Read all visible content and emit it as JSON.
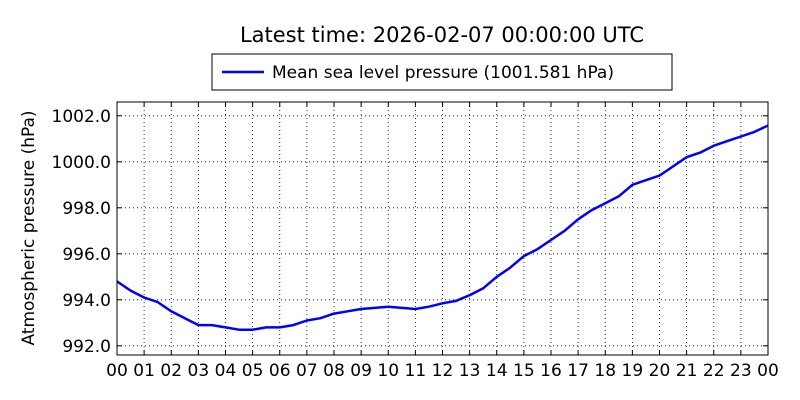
{
  "chart_data": {
    "type": "line",
    "title": "Latest time: 2026-02-07 00:00:00 UTC",
    "xlabel": "",
    "ylabel": "Atmospheric pressure (hPa)",
    "legend": {
      "position": "top-center",
      "entries": [
        "Mean sea level pressure (1001.581 hPa)"
      ]
    },
    "grid": true,
    "xlim": [
      0,
      24
    ],
    "ylim": [
      991.6,
      1002.6
    ],
    "x_ticks": [
      0,
      1,
      2,
      3,
      4,
      5,
      6,
      7,
      8,
      9,
      10,
      11,
      12,
      13,
      14,
      15,
      16,
      17,
      18,
      19,
      20,
      21,
      22,
      23,
      24
    ],
    "x_tick_labels": [
      "00",
      "01",
      "02",
      "03",
      "04",
      "05",
      "06",
      "07",
      "08",
      "09",
      "10",
      "11",
      "12",
      "13",
      "14",
      "15",
      "16",
      "17",
      "18",
      "19",
      "20",
      "21",
      "22",
      "23",
      "00"
    ],
    "y_ticks": [
      992.0,
      994.0,
      996.0,
      998.0,
      1000.0,
      1002.0
    ],
    "y_tick_labels": [
      "992.0",
      "994.0",
      "996.0",
      "998.0",
      "1000.0",
      "1002.0"
    ],
    "series": [
      {
        "name": "Mean sea level pressure (1001.581 hPa)",
        "color": "#0000ff",
        "x": [
          0,
          0.5,
          1,
          1.5,
          2,
          2.5,
          3,
          3.5,
          4,
          4.5,
          5,
          5.5,
          6,
          6.5,
          7,
          7.5,
          8,
          8.5,
          9,
          9.5,
          10,
          10.5,
          11,
          11.5,
          12,
          12.5,
          13,
          13.5,
          14,
          14.5,
          15,
          15.5,
          16,
          16.5,
          17,
          17.5,
          18,
          18.5,
          19,
          19.5,
          20,
          20.5,
          21,
          21.5,
          22,
          22.5,
          23,
          23.5,
          24
        ],
        "y": [
          994.8,
          994.4,
          994.1,
          993.9,
          993.5,
          993.2,
          992.9,
          992.9,
          992.8,
          992.7,
          992.7,
          992.8,
          992.8,
          992.9,
          993.1,
          993.2,
          993.4,
          993.5,
          993.6,
          993.65,
          993.7,
          993.65,
          993.6,
          993.7,
          993.85,
          993.95,
          994.2,
          994.5,
          995.0,
          995.4,
          995.9,
          996.2,
          996.6,
          997.0,
          997.5,
          997.9,
          998.2,
          998.5,
          999.0,
          999.2,
          999.4,
          999.8,
          1000.2,
          1000.4,
          1000.7,
          1000.9,
          1001.1,
          1001.3,
          1001.58
        ]
      }
    ]
  }
}
